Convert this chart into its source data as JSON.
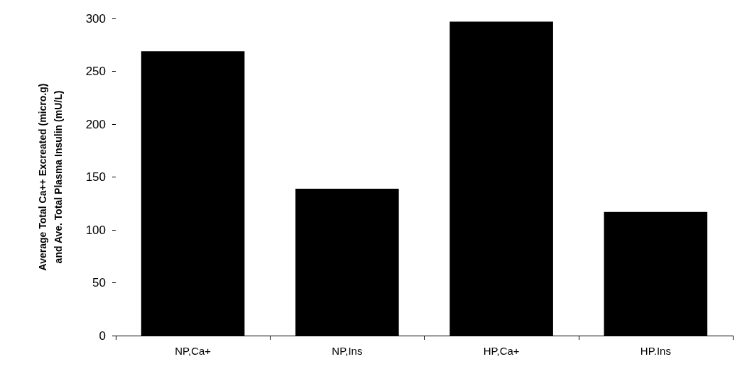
{
  "chart_data": {
    "type": "bar",
    "ylabel": "Average Total Ca++ Excreated (micro.g)\nand Ave. Total Plasma Insulin (mU/L)",
    "categories": [
      "NP,Ca+",
      "NP,Ins",
      "HP,Ca+",
      "HP.Ins"
    ],
    "values": [
      269,
      139,
      297,
      117
    ],
    "color": "#000000",
    "ylim": [
      0,
      300
    ],
    "yticks": [
      0,
      50,
      100,
      150,
      200,
      250,
      300
    ],
    "grid": false
  }
}
